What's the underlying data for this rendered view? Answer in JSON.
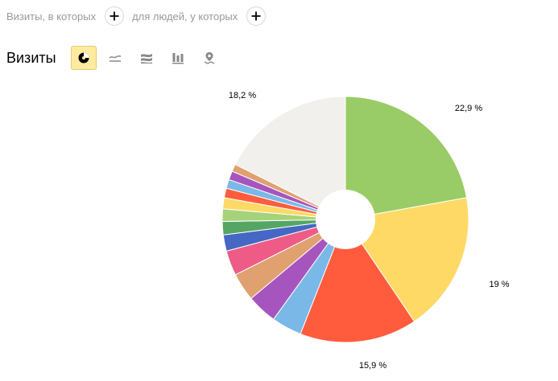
{
  "filters": {
    "visits_label": "Визиты, в которых",
    "people_label": "для людей, у которых"
  },
  "metric": {
    "title": "Визиты"
  },
  "chart_types": [
    {
      "name": "pie",
      "icon": "pie-chart-icon",
      "active": true
    },
    {
      "name": "line",
      "icon": "line-chart-icon",
      "active": false
    },
    {
      "name": "area",
      "icon": "area-chart-icon",
      "active": false
    },
    {
      "name": "bar",
      "icon": "bar-chart-icon",
      "active": false
    },
    {
      "name": "map",
      "icon": "map-pin-icon",
      "active": false
    }
  ],
  "chart_data": {
    "type": "pie",
    "donut": true,
    "slices": [
      {
        "value": 22.9,
        "label": "22,9 %",
        "color": "#99cc66"
      },
      {
        "value": 19.0,
        "label": "19 %",
        "color": "#ffd966"
      },
      {
        "value": 15.9,
        "label": "15,9 %",
        "color": "#ff5c3e"
      },
      {
        "value": 4.1,
        "label": "",
        "color": "#7ab8e8"
      },
      {
        "value": 4.1,
        "label": "",
        "color": "#a755be"
      },
      {
        "value": 3.8,
        "label": "",
        "color": "#e0a070"
      },
      {
        "value": 3.4,
        "label": "",
        "color": "#ed5b86"
      },
      {
        "value": 2.2,
        "label": "",
        "color": "#4568c4"
      },
      {
        "value": 1.8,
        "label": "",
        "color": "#55a665"
      },
      {
        "value": 1.7,
        "label": "",
        "color": "#a6d37a"
      },
      {
        "value": 1.5,
        "label": "",
        "color": "#ffd966"
      },
      {
        "value": 1.3,
        "label": "",
        "color": "#ff5c3e"
      },
      {
        "value": 1.2,
        "label": "",
        "color": "#7ab8e8"
      },
      {
        "value": 1.2,
        "label": "",
        "color": "#a755be"
      },
      {
        "value": 1.0,
        "label": "",
        "color": "#e0a070"
      },
      {
        "value": 18.2,
        "label": "18,2 %",
        "color": "#f2f0ed"
      }
    ]
  }
}
